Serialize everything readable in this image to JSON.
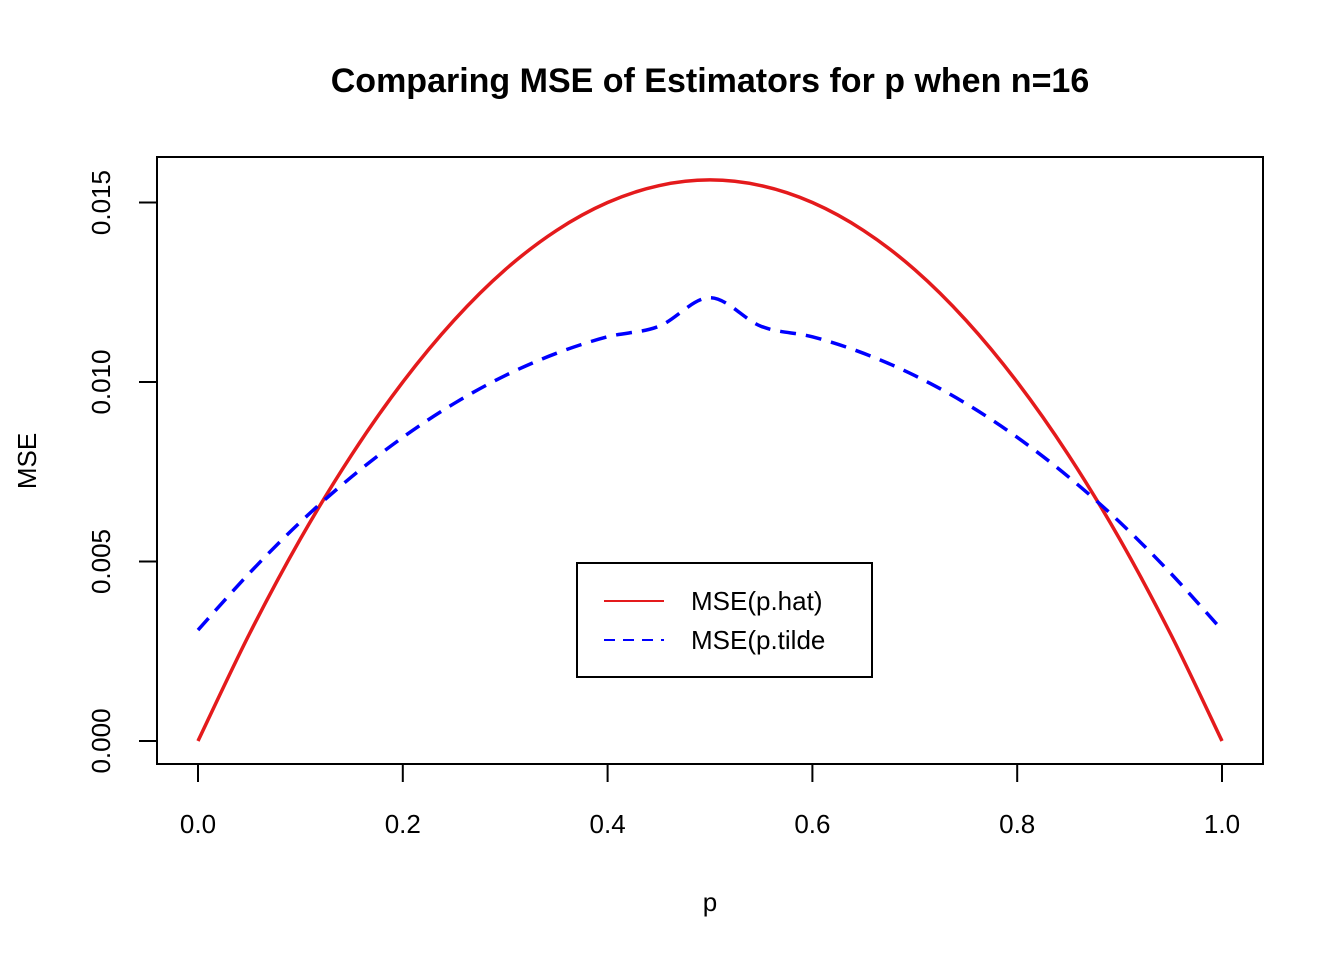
{
  "chart_data": {
    "type": "line",
    "title": "Comparing MSE of Estimators for p when n=16",
    "xlabel": "p",
    "ylabel": "MSE",
    "xlim": [
      0.0,
      1.0
    ],
    "ylim": [
      0.0,
      0.0156
    ],
    "x_ticks": [
      "0.0",
      "0.2",
      "0.4",
      "0.6",
      "0.8",
      "1.0"
    ],
    "y_ticks": [
      "0.000",
      "0.005",
      "0.010",
      "0.015"
    ],
    "grid": false,
    "legend_position": "center-bottom",
    "series": [
      {
        "name": "MSE(p.hat)",
        "color": "#e41a1c",
        "dash": "solid",
        "x": [
          0.0,
          0.05,
          0.1,
          0.15,
          0.2,
          0.25,
          0.3,
          0.35,
          0.4,
          0.45,
          0.5,
          0.55,
          0.6,
          0.65,
          0.7,
          0.75,
          0.8,
          0.85,
          0.9,
          0.95,
          1.0
        ],
        "y": [
          0.0,
          0.00297,
          0.00563,
          0.00797,
          0.01,
          0.01172,
          0.01313,
          0.01422,
          0.015,
          0.01547,
          0.01563,
          0.01547,
          0.015,
          0.01422,
          0.01313,
          0.01172,
          0.01,
          0.00797,
          0.00563,
          0.00297,
          0.0
        ]
      },
      {
        "name": "MSE(p.tilde",
        "color": "#0000ff",
        "dash": "dashed",
        "x": [
          0.0,
          0.05,
          0.1,
          0.15,
          0.2,
          0.25,
          0.3,
          0.35,
          0.4,
          0.45,
          0.5,
          0.55,
          0.6,
          0.65,
          0.7,
          0.75,
          0.8,
          0.85,
          0.9,
          0.95,
          1.0
        ],
        "y": [
          0.00309,
          0.00467,
          0.0061,
          0.00736,
          0.00846,
          0.0094,
          0.01018,
          0.0108,
          0.01126,
          0.01155,
          0.01235,
          0.01155,
          0.01126,
          0.0108,
          0.01018,
          0.0094,
          0.00846,
          0.00736,
          0.0061,
          0.00467,
          0.00309
        ]
      }
    ]
  }
}
